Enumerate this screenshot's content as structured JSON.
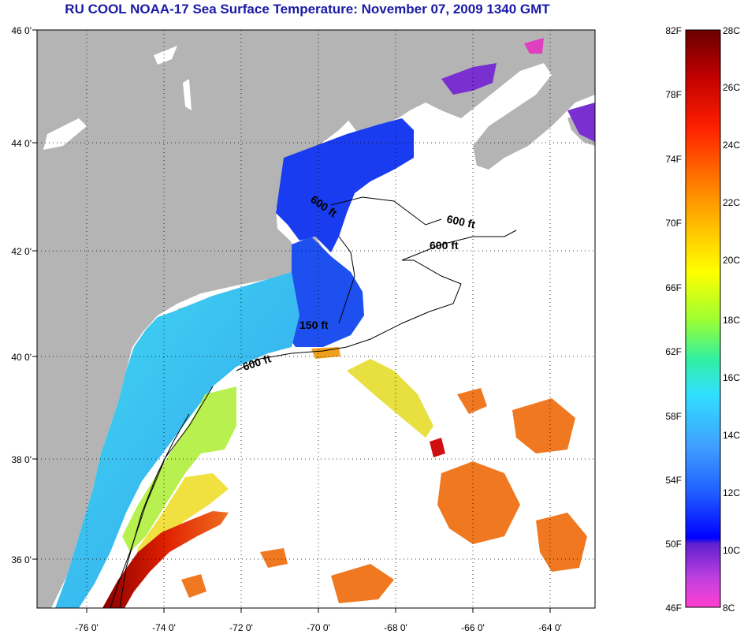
{
  "title": "RU COOL  NOAA-17  Sea Surface Temperature:  November 07, 2009 1340 GMT",
  "map": {
    "lon_labels": [
      "-76 0'",
      "-74 0'",
      "-72 0'",
      "-70 0'",
      "-68 0'",
      "-66 0'",
      "-64 0'"
    ],
    "lat_labels": [
      "46 0'",
      "44 0'",
      "42 0'",
      "40 0'",
      "38 0'",
      "36 0'"
    ],
    "contour_labels": [
      "600 ft",
      "600 ft",
      "600 ft",
      "150 ft",
      "600 ft"
    ],
    "colors": {
      "land": "#b4b4b4",
      "no_data": "#ffffff",
      "deep_blue": "#1a3cf0",
      "cyan": "#3ec8f0",
      "green_yellow": "#b8f050",
      "orange": "#f07820",
      "red": "#c00000"
    }
  },
  "colorbar": {
    "fahrenheit_labels": [
      "82F",
      "78F",
      "74F",
      "70F",
      "66F",
      "62F",
      "58F",
      "54F",
      "50F",
      "46F"
    ],
    "celsius_labels": [
      "28C",
      "26C",
      "24C",
      "22C",
      "20C",
      "18C",
      "16C",
      "14C",
      "12C",
      "10C",
      "8C"
    ]
  }
}
